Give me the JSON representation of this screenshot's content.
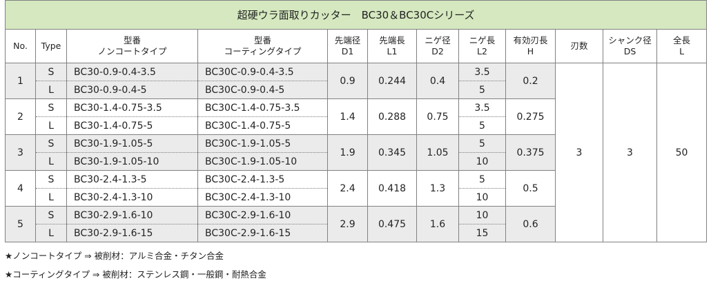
{
  "title": "超硬ウラ面取りカッター　BC30＆BC30Cシリーズ",
  "headers": {
    "no": "No.",
    "type": "Type",
    "noncoat_1": "型番",
    "noncoat_2": "ノンコートタイプ",
    "coat_1": "型番",
    "coat_2": "コーティングタイプ",
    "d1_1": "先端径",
    "d1_2": "D1",
    "l1_1": "先端長",
    "l1_2": "L1",
    "d2_1": "ニゲ径",
    "d2_2": "D2",
    "l2_1": "ニゲ長",
    "l2_2": "L2",
    "h_1": "有効刃長",
    "h_2": "H",
    "flutes": "刃数",
    "ds_1": "シャンク径",
    "ds_2": "DS",
    "l_1": "全長",
    "l_2": "L"
  },
  "groups": [
    {
      "no": "1",
      "d1": "0.9",
      "l1": "0.244",
      "d2": "0.4",
      "h": "0.2",
      "rows": [
        {
          "type": "S",
          "noncoat": "BC30-0.9-0.4-3.5",
          "coat": "BC30C-0.9-0.4-3.5",
          "l2": "3.5"
        },
        {
          "type": "L",
          "noncoat": "BC30-0.9-0.4-5",
          "coat": "BC30C-0.9-0.4-5",
          "l2": "5"
        }
      ]
    },
    {
      "no": "2",
      "d1": "1.4",
      "l1": "0.288",
      "d2": "0.75",
      "h": "0.275",
      "rows": [
        {
          "type": "S",
          "noncoat": "BC30-1.4-0.75-3.5",
          "coat": "BC30C-1.4-0.75-3.5",
          "l2": "3.5"
        },
        {
          "type": "L",
          "noncoat": "BC30-1.4-0.75-5",
          "coat": "BC30C-1.4-0.75-5",
          "l2": "5"
        }
      ]
    },
    {
      "no": "3",
      "d1": "1.9",
      "l1": "0.345",
      "d2": "1.05",
      "h": "0.375",
      "rows": [
        {
          "type": "S",
          "noncoat": "BC30-1.9-1.05-5",
          "coat": "BC30C-1.9-1.05-5",
          "l2": "5"
        },
        {
          "type": "L",
          "noncoat": "BC30-1.9-1.05-10",
          "coat": "BC30C-1.9-1.05-10",
          "l2": "10"
        }
      ]
    },
    {
      "no": "4",
      "d1": "2.4",
      "l1": "0.418",
      "d2": "1.3",
      "h": "0.5",
      "rows": [
        {
          "type": "S",
          "noncoat": "BC30-2.4-1.3-5",
          "coat": "BC30C-2.4-1.3-5",
          "l2": "5"
        },
        {
          "type": "L",
          "noncoat": "BC30-2.4-1.3-10",
          "coat": "BC30C-2.4-1.3-10",
          "l2": "10"
        }
      ]
    },
    {
      "no": "5",
      "d1": "2.9",
      "l1": "0.475",
      "d2": "1.6",
      "h": "0.6",
      "rows": [
        {
          "type": "S",
          "noncoat": "BC30-2.9-1.6-10",
          "coat": "BC30C-2.9-1.6-10",
          "l2": "10"
        },
        {
          "type": "L",
          "noncoat": "BC30-2.9-1.6-15",
          "coat": "BC30C-2.9-1.6-15",
          "l2": "15"
        }
      ]
    }
  ],
  "common": {
    "flutes": "3",
    "ds": "3",
    "l": "50"
  },
  "notes": [
    "★ノンコートタイプ ⇒ 被削材：アルミ合金・チタン合金",
    "★コーティングタイプ ⇒ 被削材：ステンレス鋼・一般鋼・耐熱合金"
  ]
}
